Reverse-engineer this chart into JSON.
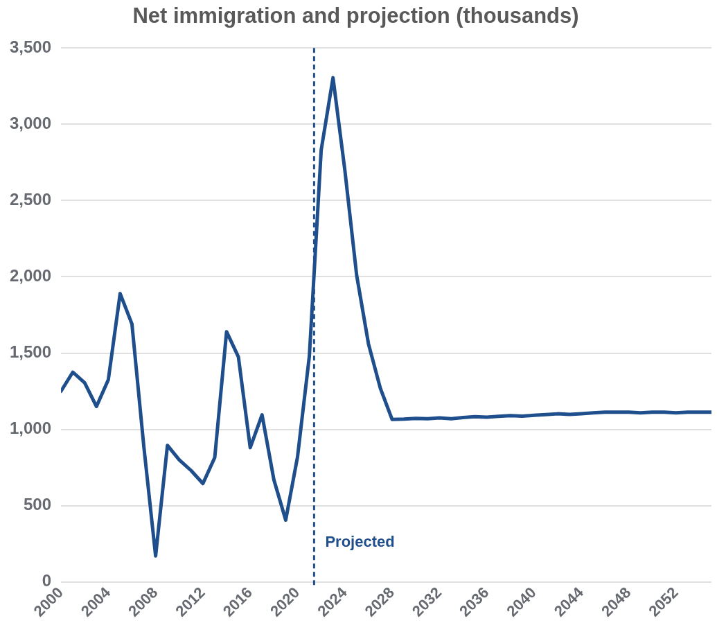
{
  "chart_data": {
    "type": "line",
    "title": "Net immigration and projection (thousands)",
    "x": [
      2000,
      2001,
      2002,
      2003,
      2004,
      2005,
      2006,
      2007,
      2008,
      2009,
      2010,
      2011,
      2012,
      2013,
      2014,
      2015,
      2016,
      2017,
      2018,
      2019,
      2020,
      2021,
      2022,
      2023,
      2024,
      2025,
      2026,
      2027,
      2028,
      2029,
      2030,
      2031,
      2032,
      2033,
      2034,
      2035,
      2036,
      2037,
      2038,
      2039,
      2040,
      2041,
      2042,
      2043,
      2044,
      2045,
      2046,
      2047,
      2048,
      2049,
      2050,
      2051,
      2052,
      2053,
      2054,
      2055
    ],
    "series": [
      {
        "color": "#1f4e8c",
        "values": [
          1250,
          1375,
          1305,
          1150,
          1325,
          1890,
          1690,
          890,
          170,
          895,
          800,
          730,
          645,
          815,
          1640,
          1475,
          880,
          1095,
          670,
          405,
          820,
          1480,
          2830,
          3305,
          2700,
          2010,
          1560,
          1270,
          1065,
          1067,
          1072,
          1070,
          1075,
          1070,
          1078,
          1083,
          1080,
          1085,
          1090,
          1087,
          1092,
          1097,
          1102,
          1098,
          1103,
          1108,
          1113,
          1113,
          1113,
          1108,
          1113,
          1113,
          1108,
          1113,
          1113,
          1113
        ]
      }
    ],
    "xlim": [
      2000,
      2055
    ],
    "xticks": [
      2000,
      2004,
      2008,
      2012,
      2016,
      2020,
      2024,
      2028,
      2032,
      2036,
      2040,
      2044,
      2048,
      2052
    ],
    "ylim": [
      0,
      3500
    ],
    "yticks": [
      0,
      500,
      {
        "value": 1000,
        "label": "1,000"
      },
      {
        "value": 1500,
        "label": "1,500"
      },
      {
        "value": 2000,
        "label": "2,000"
      },
      {
        "value": 2500,
        "label": "2,500"
      },
      {
        "value": 3000,
        "label": "3,000"
      },
      {
        "value": 3500,
        "label": "3,500"
      }
    ],
    "grid": "y",
    "legend": false,
    "marker": "none",
    "line_style": "solid",
    "ref_lines": [
      {
        "axis": "x",
        "value": 2021.4,
        "label": "Projected",
        "color": "#1f4e8c",
        "line_style": "dashed"
      }
    ]
  }
}
